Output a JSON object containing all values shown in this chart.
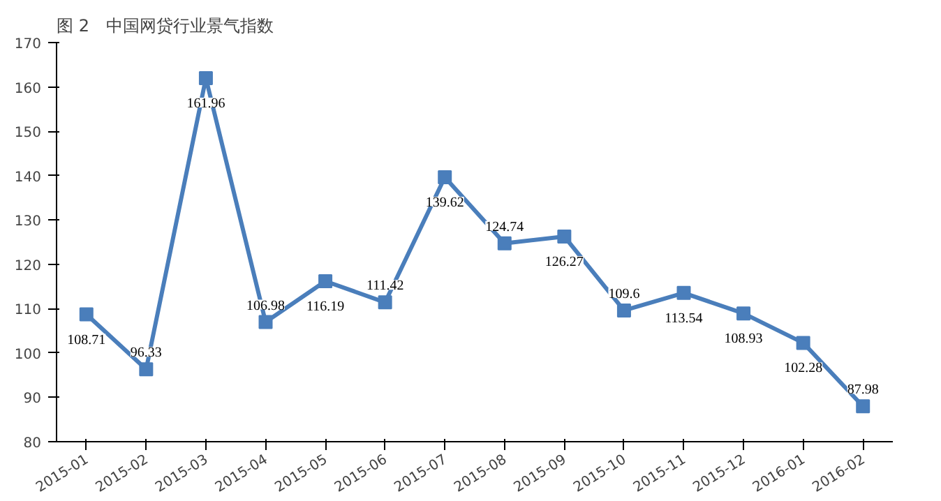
{
  "chart_data": {
    "type": "line",
    "title": "图 2　中国网贷行业景气指数",
    "categories": [
      "2015-01",
      "2015-02",
      "2015-03",
      "2015-04",
      "2015-05",
      "2015-06",
      "2015-07",
      "2015-08",
      "2015-09",
      "2015-10",
      "2015-11",
      "2015-12",
      "2016-01",
      "2016-02"
    ],
    "series": [
      {
        "color": "#4a7ebb",
        "values": [
          108.71,
          96.33,
          161.96,
          106.98,
          116.19,
          111.42,
          139.62,
          124.74,
          126.27,
          109.6,
          113.54,
          108.93,
          102.28,
          87.98
        ]
      }
    ],
    "ylim": [
      80,
      170
    ],
    "yticks": [
      80,
      90,
      100,
      110,
      120,
      130,
      140,
      150,
      160,
      170
    ],
    "marker": "square",
    "data_labels": true,
    "grid": false
  }
}
